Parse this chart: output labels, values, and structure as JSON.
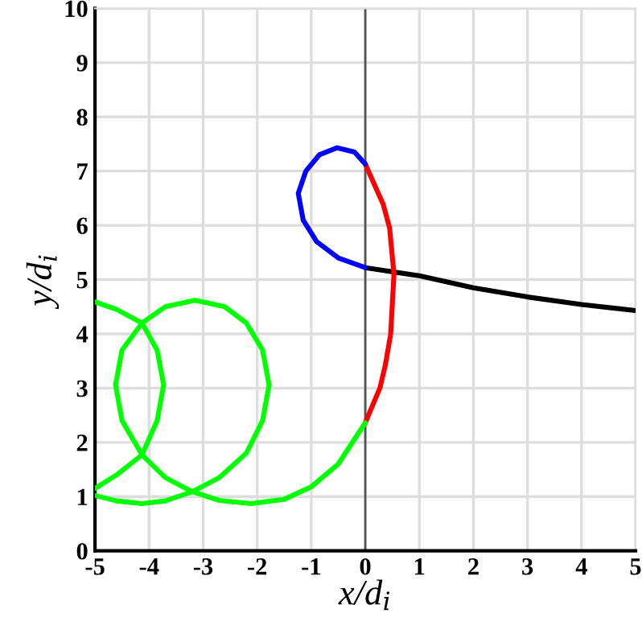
{
  "chart_data": {
    "type": "line",
    "xlabel": "x/d$_{i}$",
    "ylabel": "y/d$_{i}$",
    "xlim": [
      -5,
      5
    ],
    "ylim": [
      0,
      10
    ],
    "xticks": [
      -5,
      -4,
      -3,
      -2,
      -1,
      0,
      1,
      2,
      3,
      4,
      5
    ],
    "yticks": [
      0,
      1,
      2,
      3,
      4,
      5,
      6,
      7,
      8,
      9,
      10
    ],
    "grid": true,
    "line_style": "solid",
    "marker": "none",
    "ref_lines": [
      {
        "axis": "x",
        "value": 0,
        "color": "#555555"
      }
    ],
    "series": [
      {
        "color": "#000000",
        "x": [
          0,
          1,
          2,
          3,
          4,
          5
        ],
        "values": [
          5.22,
          5.07,
          4.85,
          4.68,
          4.54,
          4.43
        ]
      },
      {
        "color": "#ff0000",
        "x": [
          0,
          0.33,
          0.45,
          0.53,
          0.47,
          0.37,
          0.27,
          0
        ],
        "values": [
          7.13,
          6.39,
          5.95,
          5.1,
          4.0,
          3.42,
          3.0,
          2.36
        ]
      },
      {
        "color": "#0000ff",
        "x": [
          0,
          -0.2,
          -0.52,
          -0.85,
          -1.1,
          -1.24,
          -1.15,
          -0.9,
          -0.5,
          0
        ],
        "values": [
          7.13,
          7.35,
          7.43,
          7.3,
          7.0,
          6.59,
          6.1,
          5.7,
          5.4,
          5.22
        ]
      },
      {
        "color": "#00ff00",
        "x": [
          0,
          -0.5,
          -1,
          -1.5,
          -2.11,
          -2.7,
          -3.2,
          -3.7,
          -4.13,
          -4.5,
          -4.62,
          -4.5,
          -4.13,
          -3.7,
          -3.15,
          -2.6,
          -2.2,
          -1.9,
          -1.78,
          -1.9,
          -2.2,
          -2.7,
          -3.2,
          -3.7,
          -4.13,
          -4.6,
          -5,
          null,
          -5,
          -4.6,
          -4.13,
          -3.85,
          -3.73,
          -3.85,
          -4.13,
          -4.6,
          -5
        ],
        "values": [
          2.36,
          1.6,
          1.18,
          0.95,
          0.87,
          0.93,
          1.09,
          1.35,
          1.77,
          2.4,
          3.06,
          3.7,
          4.2,
          4.5,
          4.62,
          4.5,
          4.2,
          3.7,
          3.06,
          2.4,
          1.8,
          1.35,
          1.09,
          0.92,
          0.87,
          0.92,
          1.02,
          null,
          4.59,
          4.45,
          4.2,
          3.7,
          3.06,
          2.4,
          1.77,
          1.4,
          1.15
        ]
      }
    ]
  }
}
